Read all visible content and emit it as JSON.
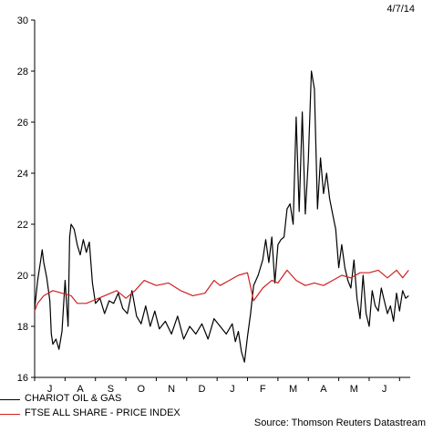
{
  "header": {
    "date": "4/7/14"
  },
  "source": "Source: Thomson Reuters Datastream",
  "chart_data": {
    "type": "line",
    "title": "",
    "xlabel": "",
    "ylabel": "",
    "ylim": [
      16,
      30
    ],
    "yticks": [
      16,
      18,
      20,
      22,
      24,
      26,
      28,
      30
    ],
    "xlim": [
      0,
      12.35
    ],
    "x_month_labels": [
      "J",
      "A",
      "S",
      "O",
      "N",
      "D",
      "J",
      "F",
      "M",
      "A",
      "M",
      "J"
    ],
    "grid": false,
    "legend_position": "bottom-left",
    "colors": {
      "chariot": "#000000",
      "ftse": "#d0201e"
    },
    "series": [
      {
        "name": "CHARIOT OIL & GAS",
        "color": "#000000",
        "x": [
          0.0,
          0.1,
          0.2,
          0.25,
          0.3,
          0.4,
          0.5,
          0.55,
          0.6,
          0.7,
          0.8,
          0.9,
          1.0,
          1.1,
          1.15,
          1.2,
          1.3,
          1.4,
          1.5,
          1.6,
          1.7,
          1.8,
          1.9,
          2.0,
          2.15,
          2.3,
          2.45,
          2.6,
          2.75,
          2.9,
          3.05,
          3.2,
          3.35,
          3.5,
          3.65,
          3.8,
          3.95,
          4.1,
          4.3,
          4.5,
          4.7,
          4.9,
          5.1,
          5.3,
          5.5,
          5.7,
          5.9,
          6.1,
          6.3,
          6.5,
          6.6,
          6.7,
          6.8,
          6.9,
          7.0,
          7.1,
          7.2,
          7.35,
          7.5,
          7.6,
          7.7,
          7.8,
          7.9,
          8.0,
          8.1,
          8.2,
          8.3,
          8.4,
          8.5,
          8.6,
          8.7,
          8.8,
          8.9,
          9.0,
          9.1,
          9.2,
          9.3,
          9.4,
          9.5,
          9.6,
          9.7,
          9.8,
          9.9,
          10.0,
          10.1,
          10.2,
          10.3,
          10.4,
          10.5,
          10.6,
          10.7,
          10.8,
          10.9,
          11.0,
          11.1,
          11.2,
          11.3,
          11.4,
          11.5,
          11.6,
          11.7,
          11.8,
          11.9,
          12.0,
          12.1,
          12.2,
          12.3
        ],
        "values": [
          18.7,
          19.8,
          20.6,
          21.0,
          20.5,
          19.9,
          19.0,
          17.7,
          17.3,
          17.5,
          17.1,
          17.8,
          19.8,
          18.0,
          21.5,
          22.0,
          21.8,
          21.2,
          20.8,
          21.4,
          20.9,
          21.3,
          19.7,
          18.9,
          19.1,
          18.5,
          19.0,
          18.9,
          19.3,
          18.7,
          18.5,
          19.4,
          18.4,
          18.1,
          18.8,
          18.0,
          18.6,
          17.9,
          18.2,
          17.7,
          18.4,
          17.5,
          18.0,
          17.7,
          18.1,
          17.5,
          18.3,
          18.0,
          17.7,
          18.1,
          17.4,
          17.8,
          17.0,
          16.6,
          17.6,
          18.5,
          19.6,
          20.0,
          20.6,
          21.4,
          20.5,
          21.5,
          19.7,
          21.2,
          21.4,
          21.5,
          22.6,
          22.8,
          22.0,
          26.2,
          22.5,
          26.4,
          22.4,
          24.5,
          28.0,
          27.3,
          22.6,
          24.6,
          23.2,
          24.0,
          23.0,
          22.4,
          21.8,
          20.3,
          21.2,
          20.3,
          19.8,
          19.5,
          20.6,
          19.1,
          18.3,
          20.0,
          18.5,
          18.0,
          19.4,
          18.8,
          18.6,
          19.5,
          19.0,
          18.5,
          18.8,
          18.2,
          19.3,
          18.6,
          19.4,
          19.1,
          19.2
        ]
      },
      {
        "name": "FTSE ALL SHARE - PRICE INDEX",
        "color": "#d0201e",
        "x": [
          0.0,
          0.1,
          0.3,
          0.6,
          0.9,
          1.2,
          1.4,
          1.7,
          1.9,
          2.3,
          2.7,
          3.0,
          3.3,
          3.6,
          4.0,
          4.4,
          4.8,
          5.2,
          5.6,
          5.9,
          6.1,
          6.4,
          6.7,
          7.0,
          7.2,
          7.5,
          7.8,
          8.0,
          8.3,
          8.6,
          8.9,
          9.2,
          9.5,
          9.8,
          10.1,
          10.4,
          10.7,
          11.0,
          11.3,
          11.6,
          11.9,
          12.1,
          12.3
        ],
        "values": [
          18.6,
          18.9,
          19.2,
          19.4,
          19.3,
          19.2,
          18.9,
          18.9,
          19.0,
          19.2,
          19.4,
          19.1,
          19.4,
          19.8,
          19.6,
          19.7,
          19.4,
          19.2,
          19.3,
          19.8,
          19.6,
          19.8,
          20.0,
          20.1,
          19.0,
          19.5,
          19.8,
          19.7,
          20.2,
          19.8,
          19.6,
          19.7,
          19.6,
          19.8,
          20.0,
          19.9,
          20.1,
          20.1,
          20.2,
          19.9,
          20.2,
          19.9,
          20.2
        ]
      }
    ]
  }
}
